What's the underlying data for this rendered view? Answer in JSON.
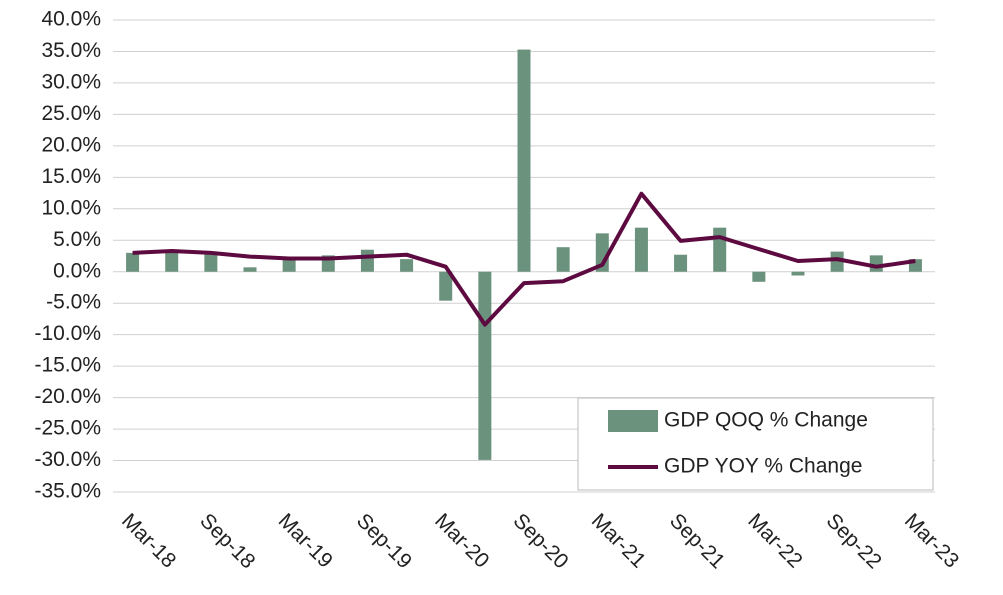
{
  "chart_data": {
    "type": "bar_line",
    "categories": [
      "Mar-18",
      null,
      "Sep-18",
      null,
      "Mar-19",
      null,
      "Sep-19",
      null,
      "Mar-20",
      null,
      "Sep-20",
      null,
      "Mar-21",
      null,
      "Sep-21",
      null,
      "Mar-22",
      null,
      "Sep-22",
      null,
      "Mar-23"
    ],
    "series": [
      {
        "name": "GDP QOQ % Change",
        "type": "bar",
        "color": "#6b927d",
        "values": [
          3.0,
          3.4,
          2.9,
          0.7,
          2.3,
          2.6,
          3.5,
          2.0,
          -4.6,
          -29.9,
          35.3,
          3.9,
          6.1,
          7.0,
          2.7,
          7.0,
          -1.6,
          -0.6,
          3.2,
          2.6,
          2.0
        ]
      },
      {
        "name": "GDP YOY % Change",
        "type": "line",
        "color": "#5c0a3f",
        "values": [
          3.0,
          3.3,
          3.0,
          2.4,
          2.1,
          2.1,
          2.4,
          2.7,
          0.8,
          -8.4,
          -1.8,
          -1.5,
          1.1,
          12.4,
          4.9,
          5.5,
          3.6,
          1.7,
          2.0,
          0.8,
          1.7
        ]
      }
    ],
    "ylim": [
      -35,
      40
    ],
    "yticks": [
      {
        "value": -35,
        "label": "-35.0%"
      },
      {
        "value": -30,
        "label": "-30.0%"
      },
      {
        "value": -25,
        "label": "-25.0%"
      },
      {
        "value": -20,
        "label": "-20.0%"
      },
      {
        "value": -15,
        "label": "-15.0%"
      },
      {
        "value": -10,
        "label": "-10.0%"
      },
      {
        "value": -5,
        "label": "-5.0%"
      },
      {
        "value": 0,
        "label": "0.0%"
      },
      {
        "value": 5,
        "label": "5.0%"
      },
      {
        "value": 10,
        "label": "10.0%"
      },
      {
        "value": 15,
        "label": "15.0%"
      },
      {
        "value": 20,
        "label": "20.0%"
      },
      {
        "value": 25,
        "label": "25.0%"
      },
      {
        "value": 30,
        "label": "30.0%"
      },
      {
        "value": 35,
        "label": "35.0%"
      },
      {
        "value": 40,
        "label": "40.0%"
      }
    ],
    "grid": true,
    "legend": "lower right"
  }
}
